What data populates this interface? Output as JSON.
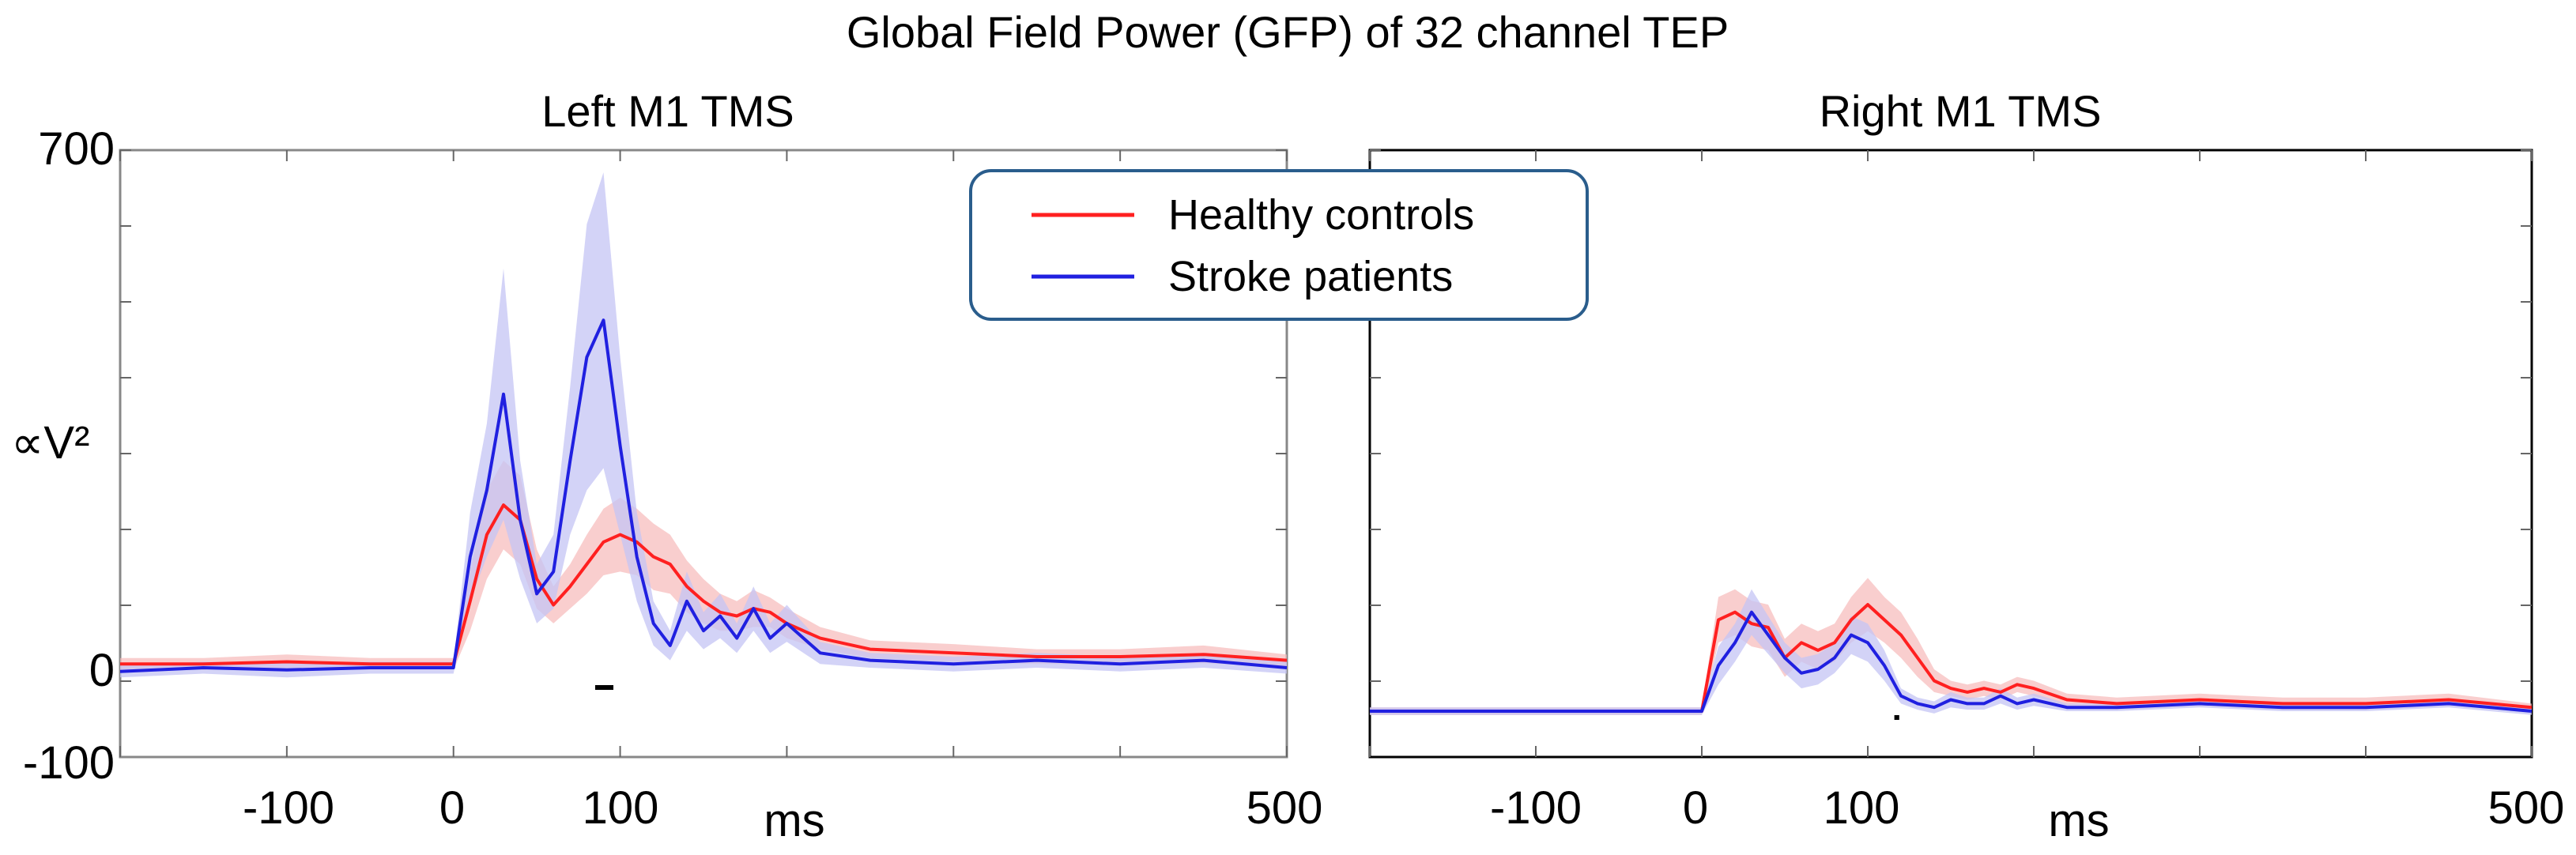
{
  "chart_data": {
    "type": "line",
    "title": "Global Field Power (GFP) of 32 channel TEP",
    "ylabel": "∝V²",
    "xlabel": "ms",
    "xlim": [
      -200,
      500
    ],
    "legend": {
      "placement": "top-center",
      "entries": [
        {
          "name": "Healthy controls",
          "color": "#ff2020"
        },
        {
          "name": "Stroke patients",
          "color": "#2020e0"
        }
      ]
    },
    "colors": {
      "healthy": "#ff2020",
      "healthy_band": "#f6b9b9",
      "stroke": "#2020e0",
      "stroke_band": "#c4c4f4"
    },
    "panels": [
      {
        "title": "Left M1 TMS",
        "ylim": [
          -100,
          700
        ],
        "ytick_labels": [
          "700",
          "0",
          "-100"
        ],
        "ytick_values": [
          700,
          0,
          -100
        ],
        "xtick_labels": [
          "-100",
          "0",
          "100",
          "500"
        ],
        "xtick_values": [
          -100,
          0,
          100,
          500
        ],
        "significance_bar": [
          85,
          95
        ],
        "series": [
          {
            "name": "Healthy controls",
            "x": [
              -200,
              -150,
              -100,
              -50,
              0,
              10,
              20,
              30,
              40,
              50,
              60,
              70,
              80,
              90,
              100,
              110,
              120,
              130,
              140,
              150,
              160,
              170,
              180,
              190,
              200,
              220,
              250,
              300,
              350,
              400,
              450,
              500
            ],
            "y": [
              5,
              5,
              8,
              5,
              5,
              90,
              180,
              220,
              200,
              120,
              85,
              110,
              140,
              170,
              180,
              170,
              150,
              140,
              110,
              90,
              75,
              70,
              80,
              75,
              60,
              40,
              25,
              20,
              15,
              15,
              18,
              10
            ],
            "err": [
              8,
              8,
              10,
              8,
              8,
              40,
              60,
              60,
              60,
              40,
              25,
              30,
              40,
              45,
              50,
              45,
              45,
              40,
              35,
              30,
              25,
              20,
              25,
              20,
              20,
              15,
              12,
              12,
              10,
              10,
              12,
              8
            ]
          },
          {
            "name": "Stroke patients",
            "x": [
              -200,
              -150,
              -100,
              -50,
              0,
              10,
              20,
              30,
              40,
              50,
              60,
              70,
              80,
              90,
              100,
              110,
              120,
              130,
              140,
              150,
              160,
              170,
              180,
              190,
              200,
              220,
              250,
              300,
              350,
              400,
              450,
              500
            ],
            "y": [
              -5,
              0,
              -3,
              0,
              0,
              150,
              240,
              370,
              200,
              100,
              130,
              280,
              420,
              470,
              300,
              150,
              60,
              30,
              90,
              50,
              70,
              40,
              80,
              40,
              60,
              20,
              10,
              5,
              10,
              5,
              10,
              0
            ],
            "err": [
              8,
              8,
              10,
              8,
              8,
              60,
              90,
              170,
              80,
              40,
              50,
              100,
              180,
              200,
              120,
              60,
              30,
              20,
              40,
              25,
              30,
              20,
              30,
              20,
              25,
              15,
              10,
              10,
              10,
              10,
              10,
              8
            ]
          }
        ]
      },
      {
        "title": "Right M1 TMS",
        "ylim": [
          -100,
          700
        ],
        "ytick_labels": [],
        "ytick_values": [],
        "xtick_labels": [
          "-100",
          "0",
          "100",
          "500"
        ],
        "xtick_values": [
          -100,
          0,
          100,
          500
        ],
        "significance_bar": [
          116,
          118
        ],
        "series": [
          {
            "name": "Healthy controls",
            "x": [
              -200,
              -150,
              -100,
              -50,
              0,
              10,
              20,
              30,
              40,
              50,
              60,
              70,
              80,
              90,
              100,
              110,
              120,
              130,
              140,
              150,
              160,
              170,
              180,
              190,
              200,
              220,
              250,
              300,
              350,
              400,
              450,
              500
            ],
            "y": [
              0,
              0,
              0,
              0,
              0,
              120,
              130,
              115,
              110,
              70,
              90,
              80,
              90,
              120,
              140,
              120,
              100,
              70,
              40,
              30,
              25,
              30,
              25,
              35,
              30,
              15,
              10,
              15,
              10,
              10,
              15,
              5
            ],
            "err": [
              5,
              5,
              5,
              5,
              5,
              30,
              30,
              30,
              30,
              25,
              25,
              25,
              25,
              30,
              35,
              30,
              30,
              25,
              15,
              10,
              10,
              10,
              10,
              10,
              10,
              8,
              8,
              8,
              8,
              8,
              8,
              5
            ],
            "yscale_note": "Right panel curves share the Left panel units but appear visually smaller"
          },
          {
            "name": "Stroke patients",
            "x": [
              -200,
              -150,
              -100,
              -50,
              0,
              10,
              20,
              30,
              40,
              50,
              60,
              70,
              80,
              90,
              100,
              110,
              120,
              130,
              140,
              150,
              160,
              170,
              180,
              190,
              200,
              220,
              250,
              300,
              350,
              400,
              450,
              500
            ],
            "y": [
              0,
              0,
              0,
              0,
              0,
              60,
              90,
              130,
              100,
              70,
              50,
              55,
              70,
              100,
              90,
              60,
              20,
              10,
              5,
              15,
              10,
              10,
              20,
              10,
              15,
              5,
              5,
              10,
              5,
              5,
              10,
              0
            ],
            "err": [
              5,
              5,
              5,
              5,
              5,
              25,
              25,
              30,
              25,
              20,
              20,
              20,
              20,
              25,
              25,
              20,
              10,
              8,
              8,
              10,
              8,
              8,
              10,
              8,
              8,
              5,
              5,
              5,
              5,
              5,
              5,
              5
            ]
          }
        ]
      }
    ]
  }
}
